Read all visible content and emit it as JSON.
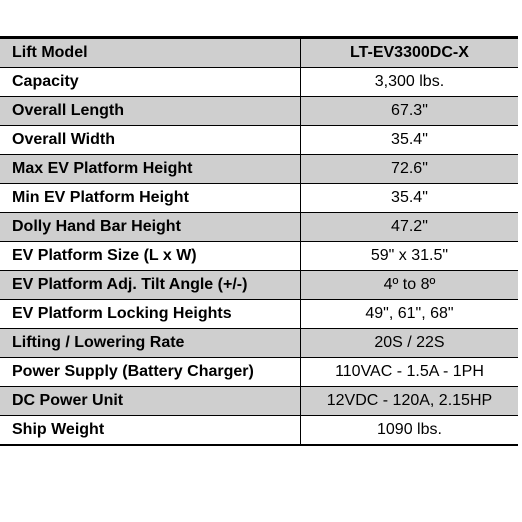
{
  "type": "spec_table",
  "background_color": "#ffffff",
  "shaded_row_color": "#cfcfcf",
  "border_color": "#000000",
  "text_color": "#000000",
  "font_family": "Arial",
  "label_fontsize": 16,
  "value_fontsize": 16,
  "rows": [
    {
      "label": "Lift Model",
      "value": "LT-EV3300DC-X",
      "shaded": true,
      "header": true
    },
    {
      "label": "Capacity",
      "value": "3,300 lbs.",
      "shaded": false,
      "header": false
    },
    {
      "label": "Overall Length",
      "value": "67.3\"",
      "shaded": true,
      "header": false
    },
    {
      "label": "Overall Width",
      "value": "35.4\"",
      "shaded": false,
      "header": false
    },
    {
      "label": "Max EV Platform Height",
      "value": "72.6\"",
      "shaded": true,
      "header": false
    },
    {
      "label": "Min EV Platform Height",
      "value": "35.4\"",
      "shaded": false,
      "header": false
    },
    {
      "label": "Dolly Hand Bar Height",
      "value": "47.2\"",
      "shaded": true,
      "header": false
    },
    {
      "label": "EV Platform Size (L x W)",
      "value": "59\" x 31.5\"",
      "shaded": false,
      "header": false
    },
    {
      "label": "EV Platform Adj. Tilt Angle (+/-)",
      "value": "4º to 8º",
      "shaded": true,
      "header": false
    },
    {
      "label": "EV Platform Locking Heights",
      "value": "49\", 61\", 68\"",
      "shaded": false,
      "header": false
    },
    {
      "label": "Lifting / Lowering Rate",
      "value": "20S / 22S",
      "shaded": true,
      "header": false
    },
    {
      "label": "Power Supply (Battery Charger)",
      "value": "110VAC - 1.5A - 1PH",
      "shaded": false,
      "header": false
    },
    {
      "label": "DC Power Unit",
      "value": "12VDC - 120A, 2.15HP",
      "shaded": true,
      "header": false
    },
    {
      "label": "Ship Weight",
      "value": "1090 lbs.",
      "shaded": false,
      "header": false
    }
  ]
}
